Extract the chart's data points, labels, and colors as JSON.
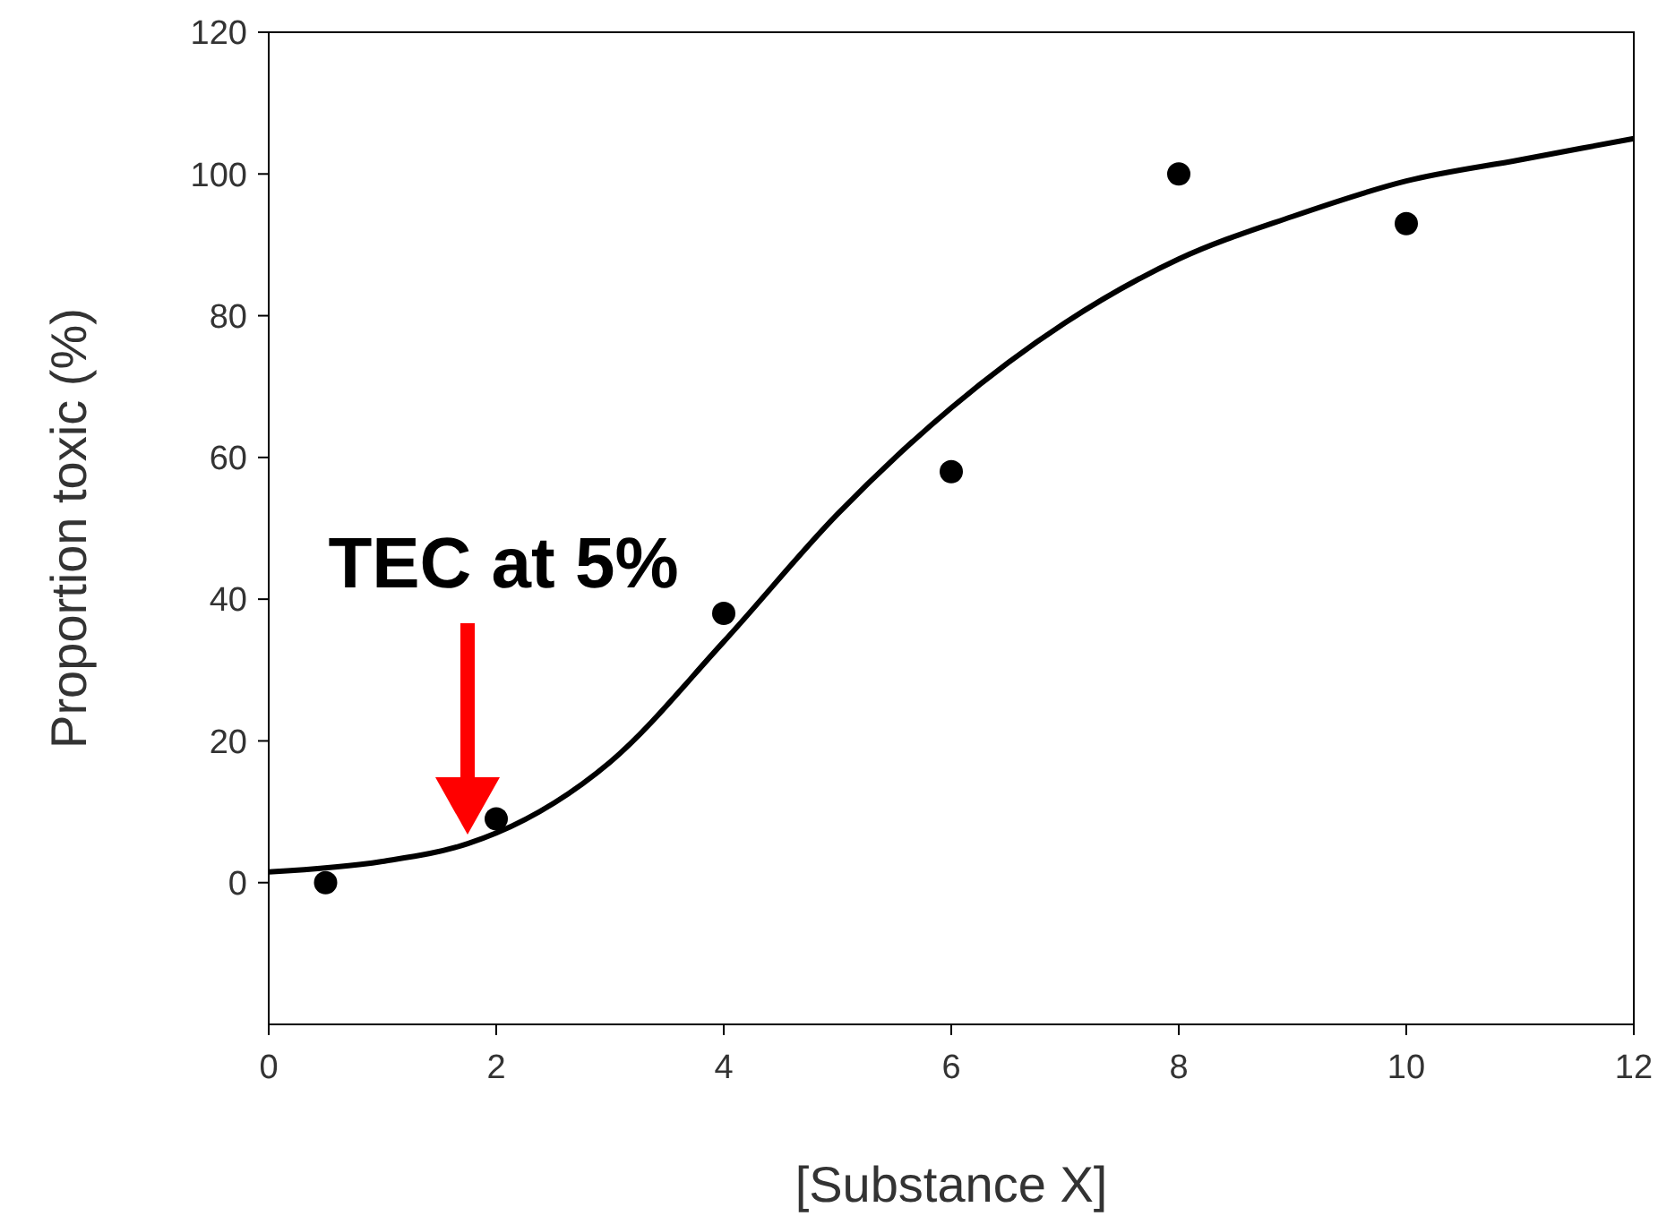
{
  "chart_data": {
    "type": "scatter",
    "xlabel": "[Substance X]",
    "ylabel": "Proportion toxic (%)",
    "xlim": [
      0,
      12
    ],
    "xticks": [
      0,
      2,
      4,
      6,
      8,
      10,
      12
    ],
    "ylim": [
      -20,
      120
    ],
    "yticks": [
      0,
      20,
      40,
      60,
      80,
      100,
      120
    ],
    "grid": false,
    "series": [
      {
        "marker": "circle",
        "color": "#000000",
        "x": [
          0.5,
          2,
          4,
          6,
          8,
          10
        ],
        "values": [
          0,
          9,
          38,
          58,
          100,
          93
        ]
      },
      {
        "type": "line",
        "color": "#000000",
        "x": [
          0,
          1,
          1.75,
          2,
          3,
          4,
          5,
          6,
          7,
          8,
          9,
          10,
          11,
          12
        ],
        "values": [
          1.5,
          3,
          5.5,
          7,
          17,
          34,
          52,
          67,
          79,
          88,
          94,
          99,
          102,
          105
        ]
      }
    ],
    "annotations": [
      "TEC at 5%"
    ]
  }
}
